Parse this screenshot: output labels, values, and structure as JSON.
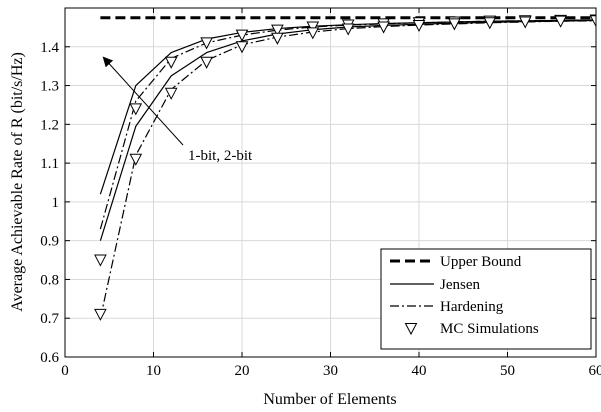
{
  "chart_data": {
    "type": "line",
    "xlabel": "Number of Elements",
    "ylabel": "Average Achievable Rate of R (bit/s/Hz)",
    "xlim": [
      0,
      60
    ],
    "ylim": [
      0.6,
      1.5
    ],
    "xticks": [
      0,
      10,
      20,
      30,
      40,
      50,
      60
    ],
    "yticks": [
      0.6,
      0.7,
      0.8,
      0.9,
      1,
      1.1,
      1.2,
      1.3,
      1.4
    ],
    "grid": true,
    "legend_position": "bottom-right",
    "legend": [
      "Upper Bound",
      "Jensen",
      "Hardening",
      "MC Simulations"
    ],
    "annotation": "1-bit, 2-bit",
    "series": [
      {
        "name": "Upper Bound",
        "style": "dashed",
        "x": [
          4,
          60
        ],
        "y": [
          1.475,
          1.475
        ]
      },
      {
        "name": "Jensen",
        "style": "solid",
        "quantization": "2-bit",
        "x": [
          4,
          8,
          12,
          16,
          20,
          24,
          28,
          32,
          36,
          40,
          44,
          48,
          52,
          56,
          60
        ],
        "y": [
          1.02,
          1.3,
          1.385,
          1.42,
          1.437,
          1.447,
          1.453,
          1.457,
          1.46,
          1.462,
          1.464,
          1.466,
          1.467,
          1.468,
          1.469
        ]
      },
      {
        "name": "Jensen",
        "style": "solid",
        "quantization": "1-bit",
        "x": [
          4,
          8,
          12,
          16,
          20,
          24,
          28,
          32,
          36,
          40,
          44,
          48,
          52,
          56,
          60
        ],
        "y": [
          0.9,
          1.195,
          1.325,
          1.385,
          1.415,
          1.433,
          1.444,
          1.451,
          1.455,
          1.458,
          1.461,
          1.463,
          1.465,
          1.466,
          1.468
        ]
      },
      {
        "name": "Hardening",
        "style": "dashdot",
        "quantization": "2-bit",
        "x": [
          4,
          8,
          12,
          16,
          20,
          24,
          28,
          32,
          36,
          40,
          44,
          48,
          52,
          56,
          60
        ],
        "y": [
          0.93,
          1.26,
          1.37,
          1.41,
          1.43,
          1.443,
          1.451,
          1.456,
          1.459,
          1.462,
          1.464,
          1.466,
          1.467,
          1.468,
          1.469
        ]
      },
      {
        "name": "Hardening",
        "style": "dashdot",
        "quantization": "1-bit",
        "x": [
          4,
          8,
          12,
          16,
          20,
          24,
          28,
          32,
          36,
          40,
          44,
          48,
          52,
          56,
          60
        ],
        "y": [
          0.7,
          1.12,
          1.29,
          1.365,
          1.405,
          1.425,
          1.438,
          1.447,
          1.452,
          1.456,
          1.459,
          1.462,
          1.464,
          1.466,
          1.467
        ]
      },
      {
        "name": "MC Simulations",
        "style": "markers",
        "quantization": "2-bit",
        "x": [
          4,
          8,
          12,
          16,
          20,
          24,
          28,
          32,
          36,
          40,
          44,
          48,
          52,
          56,
          60
        ],
        "y": [
          0.85,
          1.24,
          1.36,
          1.41,
          1.43,
          1.443,
          1.451,
          1.456,
          1.459,
          1.462,
          1.464,
          1.466,
          1.467,
          1.468,
          1.469
        ]
      },
      {
        "name": "MC Simulations",
        "style": "markers",
        "quantization": "1-bit",
        "x": [
          4,
          8,
          12,
          16,
          20,
          24,
          28,
          32,
          36,
          40,
          44,
          48,
          52,
          56,
          60
        ],
        "y": [
          0.71,
          1.11,
          1.28,
          1.36,
          1.4,
          1.422,
          1.436,
          1.446,
          1.451,
          1.455,
          1.459,
          1.462,
          1.464,
          1.466,
          1.467
        ]
      }
    ]
  }
}
